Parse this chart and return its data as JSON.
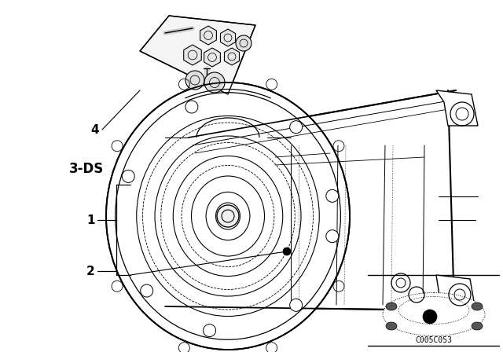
{
  "bg_color": "#ffffff",
  "label_color": "#000000",
  "line_color": "#000000",
  "ref_code": "C005C053",
  "label_4": "4",
  "label_3ds": "3-DS",
  "label_1": "1",
  "label_2": "2",
  "font_size_num": 11,
  "font_size_3ds": 12,
  "font_size_ref": 7,
  "figsize": [
    6.4,
    4.48
  ],
  "dpi": 100
}
